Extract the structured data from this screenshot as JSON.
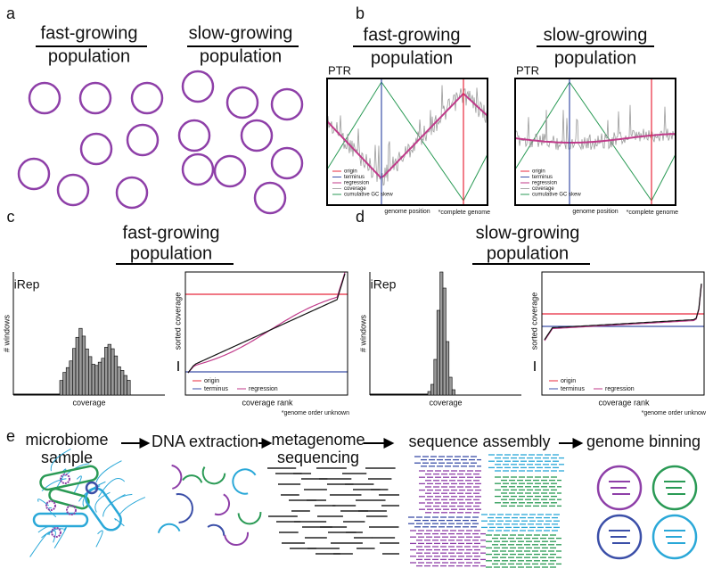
{
  "a": {
    "label": "a",
    "fast": [
      "fast-growing",
      "population"
    ],
    "slow": [
      "slow-growing",
      "population"
    ]
  },
  "b": {
    "label": "b",
    "fast": {
      "title": [
        "fast-growing",
        "population"
      ],
      "y_label": "PTR",
      "legend": [
        "origin",
        "terminus",
        "regression",
        "coverage",
        "cumulative GC skew"
      ],
      "x_label": "genome position",
      "note": "*complete genome"
    },
    "slow": {
      "title": [
        "slow-growing",
        "population"
      ],
      "y_label": "PTR",
      "legend": [
        "origin",
        "terminus",
        "regression",
        "coverage",
        "cumulative GC skew"
      ],
      "x_label": "genome position",
      "note": "*complete genome"
    }
  },
  "c": {
    "label": "c",
    "title": [
      "fast-growing",
      "population"
    ],
    "histogram": {
      "metric": "iRep",
      "y_label": "# windows",
      "x_label": "coverage"
    },
    "sorted": {
      "y_label": "sorted coverage",
      "x_label": "coverage rank",
      "legend": [
        "origin",
        "terminus",
        "regression"
      ],
      "note": "*genome order unknown"
    }
  },
  "d": {
    "label": "d",
    "title": [
      "slow-growing",
      "population"
    ],
    "histogram": {
      "metric": "iRep",
      "y_label": "# windows",
      "x_label": "coverage"
    },
    "sorted": {
      "y_label": "sorted coverage",
      "x_label": "coverage rank",
      "legend": [
        "origin",
        "terminus",
        "regression"
      ],
      "note": "*genome order unknow"
    }
  },
  "e": {
    "label": "e",
    "steps": [
      [
        "microbiome",
        "sample"
      ],
      [
        "DNA extraction"
      ],
      [
        "metagenome",
        "sequencing"
      ],
      [
        "sequence assembly"
      ],
      [
        "genome binning"
      ]
    ]
  }
}
